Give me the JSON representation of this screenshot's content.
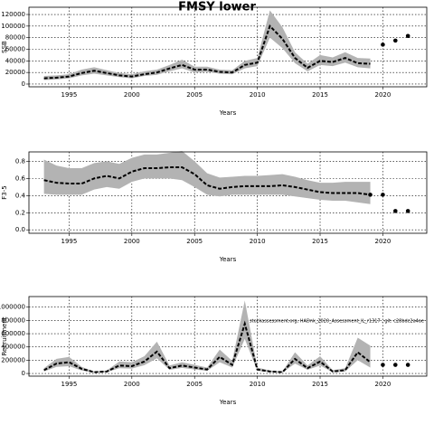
{
  "chart_data": [
    {
      "type": "line",
      "title": "FMSY lower",
      "ylabel": "SSB",
      "xlabel": "Years",
      "xlim": [
        1991.8,
        2023.5
      ],
      "xticks": [
        1995,
        2000,
        2005,
        2010,
        2015,
        2020
      ],
      "ylim": [
        -4700,
        132500
      ],
      "yticks": [
        0,
        20000,
        40000,
        60000,
        80000,
        100000,
        120000
      ],
      "grid": true,
      "x": [
        1993,
        1994,
        1995,
        1996,
        1997,
        1998,
        1999,
        2000,
        2001,
        2002,
        2003,
        2004,
        2005,
        2006,
        2007,
        2008,
        2009,
        2010,
        2011,
        2012,
        2013,
        2014,
        2015,
        2016,
        2017,
        2018,
        2019
      ],
      "values": [
        10000,
        11000,
        13000,
        19000,
        23000,
        19000,
        15000,
        13000,
        17000,
        20000,
        27000,
        33000,
        25000,
        25000,
        21000,
        20000,
        33000,
        37000,
        100000,
        78000,
        45000,
        28000,
        40000,
        38000,
        45000,
        36000,
        35000
      ],
      "lower": [
        7000,
        8000,
        10000,
        15000,
        18000,
        15000,
        12000,
        10000,
        14000,
        16000,
        22000,
        27000,
        20000,
        21000,
        18000,
        17000,
        27000,
        31000,
        80000,
        62000,
        36000,
        22000,
        33000,
        31000,
        37000,
        29000,
        27000
      ],
      "upper": [
        14000,
        15000,
        17000,
        25000,
        29000,
        24000,
        19000,
        17000,
        22000,
        25000,
        33000,
        42000,
        30000,
        30000,
        25000,
        24000,
        40000,
        45000,
        127000,
        98000,
        55000,
        35000,
        50000,
        46000,
        55000,
        45000,
        44000
      ],
      "projection_x": [
        2020,
        2021,
        2022
      ],
      "projection_values": [
        68000,
        75000,
        83000
      ]
    },
    {
      "type": "line",
      "ylabel": "F3-5",
      "xlabel": "Years",
      "xlim": [
        1991.8,
        2023.5
      ],
      "xticks": [
        1995,
        2000,
        2005,
        2010,
        2015,
        2020
      ],
      "ylim": [
        -0.04,
        0.91
      ],
      "yticks": [
        {
          "value": 0,
          "label": "0.0"
        },
        0.2,
        0.4,
        0.6,
        0.8
      ],
      "grid": true,
      "x": [
        1993,
        1994,
        1995,
        1996,
        1997,
        1998,
        1999,
        2000,
        2001,
        2002,
        2003,
        2004,
        2005,
        2006,
        2007,
        2008,
        2009,
        2010,
        2011,
        2012,
        2013,
        2014,
        2015,
        2016,
        2017,
        2018,
        2019
      ],
      "values": [
        0.58,
        0.55,
        0.54,
        0.54,
        0.6,
        0.63,
        0.6,
        0.68,
        0.72,
        0.72,
        0.73,
        0.73,
        0.65,
        0.52,
        0.48,
        0.5,
        0.51,
        0.51,
        0.51,
        0.52,
        0.5,
        0.47,
        0.44,
        0.43,
        0.43,
        0.43,
        0.41
      ],
      "lower": [
        0.42,
        0.41,
        0.41,
        0.41,
        0.47,
        0.5,
        0.48,
        0.56,
        0.6,
        0.6,
        0.6,
        0.58,
        0.5,
        0.41,
        0.39,
        0.41,
        0.41,
        0.41,
        0.41,
        0.41,
        0.39,
        0.37,
        0.35,
        0.34,
        0.34,
        0.32,
        0.3
      ],
      "upper": [
        0.82,
        0.75,
        0.72,
        0.72,
        0.78,
        0.8,
        0.77,
        0.84,
        0.88,
        0.88,
        0.9,
        0.92,
        0.8,
        0.66,
        0.61,
        0.62,
        0.63,
        0.63,
        0.64,
        0.65,
        0.62,
        0.58,
        0.55,
        0.55,
        0.56,
        0.56,
        0.56
      ],
      "projection_x": [
        2019,
        2020,
        2021,
        2022
      ],
      "projection_values": [
        0.41,
        0.41,
        0.22,
        0.22
      ]
    },
    {
      "type": "line",
      "ylabel": "Recruitment",
      "xlabel": "Years",
      "annotation": "stockassessment.org, HADnk_2020_Assessment_IL_r1317 , git: c28bdc2a4ae",
      "xlim": [
        1991.8,
        2023.5
      ],
      "xticks": [
        1995,
        2000,
        2005,
        2010,
        2015,
        2020
      ],
      "ylim": [
        -40000,
        1160000
      ],
      "yticks": [
        0,
        200000,
        400000,
        600000,
        800000,
        1000000
      ],
      "grid": true,
      "x": [
        1993,
        1994,
        1995,
        1996,
        1997,
        1998,
        1999,
        2000,
        2001,
        2002,
        2003,
        2004,
        2005,
        2006,
        2007,
        2008,
        2009,
        2010,
        2011,
        2012,
        2013,
        2014,
        2015,
        2016,
        2017,
        2018,
        2019
      ],
      "values": [
        50000,
        150000,
        170000,
        70000,
        20000,
        30000,
        120000,
        110000,
        180000,
        330000,
        80000,
        120000,
        90000,
        60000,
        250000,
        130000,
        750000,
        60000,
        30000,
        20000,
        220000,
        80000,
        180000,
        30000,
        50000,
        320000,
        170000
      ],
      "lower": [
        30000,
        100000,
        110000,
        45000,
        12000,
        20000,
        80000,
        75000,
        125000,
        230000,
        55000,
        85000,
        60000,
        40000,
        170000,
        90000,
        520000,
        40000,
        20000,
        12000,
        150000,
        55000,
        120000,
        20000,
        30000,
        200000,
        90000
      ],
      "upper": [
        80000,
        220000,
        250000,
        100000,
        30000,
        45000,
        180000,
        170000,
        260000,
        480000,
        120000,
        170000,
        130000,
        90000,
        360000,
        190000,
        1100000,
        90000,
        45000,
        30000,
        320000,
        120000,
        260000,
        50000,
        80000,
        540000,
        420000
      ],
      "projection_x": [
        2020,
        2021,
        2022
      ],
      "projection_values": [
        130000,
        130000,
        130000
      ]
    }
  ]
}
